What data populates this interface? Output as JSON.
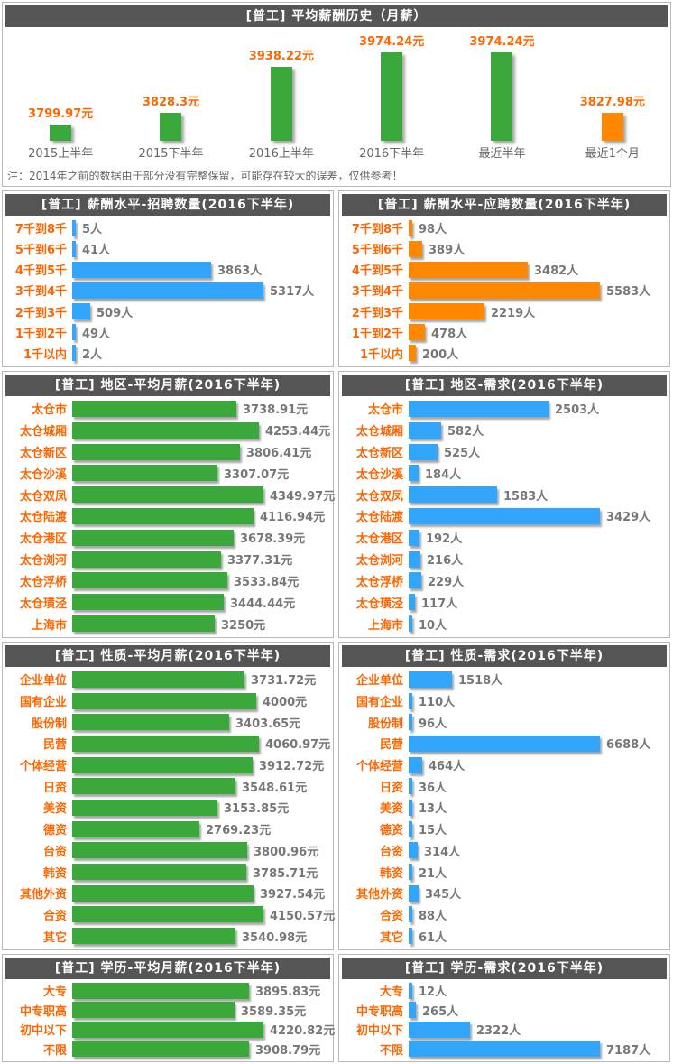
{
  "colors": {
    "green": "#3aa83a",
    "blue": "#33a6fc",
    "orange": "#ff8800",
    "label_orange": "#ff6600",
    "value_gray": "#777777",
    "header_bg": "#555555",
    "header_text": "#ffffff"
  },
  "chart_data": [
    {
      "id": "salary-history",
      "type": "bar",
      "orientation": "vertical",
      "title": "[普工] 平均薪酬历史（月薪）",
      "categories": [
        "2015上半年",
        "2015下半年",
        "2016上半年",
        "2016下半年",
        "最近半年",
        "最近1个月"
      ],
      "values": [
        3799.97,
        3828.3,
        3938.22,
        3974.24,
        3974.24,
        3827.98
      ],
      "unit": "元",
      "bar_colors": [
        "green",
        "green",
        "green",
        "green",
        "green",
        "orange"
      ],
      "ylim": [
        3760,
        3985
      ],
      "note": "注：2014年之前的数据由于部分没有完整保留，可能存在较大的误差，仅供参考！"
    },
    {
      "id": "salary-level-recruit-count",
      "type": "bar",
      "orientation": "horizontal",
      "title": "[普工] 薪酬水平-招聘数量(2016下半年)",
      "categories": [
        "7千到8千",
        "5千到6千",
        "4千到5千",
        "3千到4千",
        "2千到3千",
        "1千到2千",
        "1千以内"
      ],
      "values": [
        5,
        41,
        3863,
        5317,
        509,
        49,
        2
      ],
      "unit": "人",
      "color": "blue"
    },
    {
      "id": "salary-level-apply-count",
      "type": "bar",
      "orientation": "horizontal",
      "title": "[普工] 薪酬水平-应聘数量(2016下半年)",
      "categories": [
        "7千到8千",
        "5千到6千",
        "4千到5千",
        "3千到4千",
        "2千到3千",
        "1千到2千",
        "1千以内"
      ],
      "values": [
        98,
        389,
        3482,
        5583,
        2219,
        478,
        200
      ],
      "unit": "人",
      "color": "orange"
    },
    {
      "id": "region-avg-salary",
      "type": "bar",
      "orientation": "horizontal",
      "title": "[普工] 地区-平均月薪(2016下半年)",
      "categories": [
        "太仓市",
        "太仓城厢",
        "太仓新区",
        "太仓沙溪",
        "太仓双凤",
        "太仓陆渡",
        "太仓港区",
        "太仓浏河",
        "太仓浮桥",
        "太仓璜泾",
        "上海市"
      ],
      "values": [
        3738.91,
        4253.44,
        3806.41,
        3307.07,
        4349.97,
        4116.94,
        3678.39,
        3377.31,
        3533.84,
        3444.44,
        3250
      ],
      "unit": "元",
      "color": "green"
    },
    {
      "id": "region-demand",
      "type": "bar",
      "orientation": "horizontal",
      "title": "[普工] 地区-需求(2016下半年)",
      "categories": [
        "太仓市",
        "太仓城厢",
        "太仓新区",
        "太仓沙溪",
        "太仓双凤",
        "太仓陆渡",
        "太仓港区",
        "太仓浏河",
        "太仓浮桥",
        "太仓璜泾",
        "上海市"
      ],
      "values": [
        2503,
        582,
        525,
        184,
        1583,
        3429,
        192,
        216,
        229,
        117,
        10
      ],
      "unit": "人",
      "color": "blue"
    },
    {
      "id": "nature-avg-salary",
      "type": "bar",
      "orientation": "horizontal",
      "title": "[普工] 性质-平均月薪(2016下半年)",
      "categories": [
        "企业单位",
        "国有企业",
        "股份制",
        "民营",
        "个体经营",
        "日资",
        "美资",
        "德资",
        "台资",
        "韩资",
        "其他外资",
        "合资",
        "其它"
      ],
      "values": [
        3731.72,
        4000,
        3403.65,
        4060.97,
        3912.72,
        3548.61,
        3153.85,
        2769.23,
        3800.96,
        3785.71,
        3927.54,
        4150.57,
        3540.98
      ],
      "unit": "元",
      "color": "green"
    },
    {
      "id": "nature-demand",
      "type": "bar",
      "orientation": "horizontal",
      "title": "[普工] 性质-需求(2016下半年)",
      "categories": [
        "企业单位",
        "国有企业",
        "股份制",
        "民营",
        "个体经营",
        "日资",
        "美资",
        "德资",
        "台资",
        "韩资",
        "其他外资",
        "合资",
        "其它"
      ],
      "values": [
        1518,
        110,
        96,
        6688,
        464,
        36,
        13,
        15,
        314,
        21,
        345,
        88,
        61
      ],
      "unit": "人",
      "color": "blue"
    },
    {
      "id": "education-avg-salary",
      "type": "bar",
      "orientation": "horizontal",
      "title": "[普工] 学历-平均月薪(2016下半年)",
      "categories": [
        "大专",
        "中专职高",
        "初中以下",
        "不限"
      ],
      "values": [
        3895.83,
        3589.35,
        4220.82,
        3908.79
      ],
      "unit": "元",
      "color": "green"
    },
    {
      "id": "education-demand",
      "type": "bar",
      "orientation": "horizontal",
      "title": "[普工] 学历-需求(2016下半年)",
      "categories": [
        "大专",
        "中专职高",
        "初中以下",
        "不限"
      ],
      "values": [
        12,
        265,
        2322,
        7187
      ],
      "unit": "人",
      "color": "blue"
    }
  ]
}
